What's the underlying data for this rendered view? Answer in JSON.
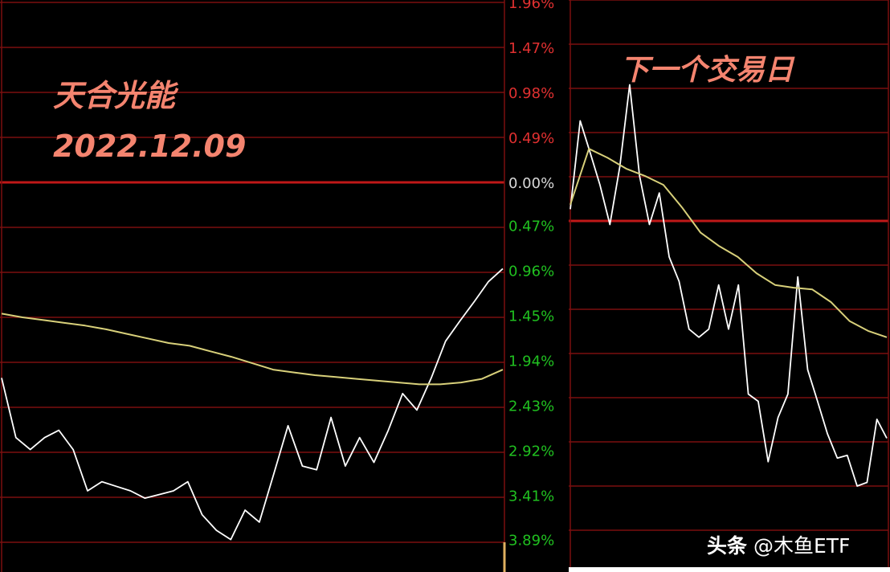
{
  "chart_data": [
    {
      "type": "line",
      "title": "天合光能",
      "subtitle": "2022.12.09",
      "ylabel_ticks": [
        "1.96%",
        "1.47%",
        "0.98%",
        "0.49%",
        "0.00%",
        "0.47%",
        "0.96%",
        "1.45%",
        "1.94%",
        "2.43%",
        "2.92%",
        "3.41%",
        "3.89%"
      ],
      "tick_values": [
        1.96,
        1.47,
        0.98,
        0.49,
        0,
        -0.47,
        -0.96,
        -1.45,
        -1.94,
        -2.43,
        -2.92,
        -3.41,
        -3.89
      ],
      "ylim": [
        -3.89,
        1.96
      ],
      "grid": true,
      "series": [
        {
          "color": "#ffffff",
          "values": [
            -2.13,
            -2.78,
            -2.91,
            -2.78,
            -2.7,
            -2.91,
            -3.36,
            -3.26,
            -3.31,
            -3.36,
            -3.44,
            -3.4,
            -3.36,
            -3.26,
            -3.62,
            -3.79,
            -3.89,
            -3.57,
            -3.7,
            -3.18,
            -2.65,
            -3.09,
            -3.13,
            -2.56,
            -3.09,
            -2.78,
            -3.05,
            -2.7,
            -2.3,
            -2.48,
            -2.13,
            -1.73,
            -1.51,
            -1.3,
            -1.08,
            -0.94
          ]
        },
        {
          "color": "#d8d07a",
          "values": [
            -1.43,
            -1.47,
            -1.5,
            -1.53,
            -1.56,
            -1.6,
            -1.65,
            -1.7,
            -1.75,
            -1.78,
            -1.84,
            -1.9,
            -1.97,
            -2.04,
            -2.07,
            -2.1,
            -2.12,
            -2.14,
            -2.16,
            -2.18,
            -2.2,
            -2.2,
            -2.18,
            -2.14,
            -2.04
          ]
        }
      ]
    },
    {
      "type": "line",
      "title": "下一个交易日",
      "ylim": [
        -3.89,
        1.96
      ],
      "grid": true,
      "series": [
        {
          "color": "#ffffff",
          "values": [
            0.13,
            1.11,
            0.76,
            0.4,
            -0.04,
            0.6,
            1.51,
            0.5,
            -0.04,
            0.31,
            -0.4,
            -0.67,
            -1.2,
            -1.29,
            -1.2,
            -0.71,
            -1.2,
            -0.71,
            -1.92,
            -2.0,
            -2.67,
            -2.18,
            -1.92,
            -0.62,
            -1.65,
            -2.0,
            -2.36,
            -2.63,
            -2.6,
            -2.94,
            -2.9,
            -2.2,
            -2.41
          ]
        },
        {
          "color": "#d8d07a",
          "values": [
            0.18,
            0.8,
            0.7,
            0.58,
            0.5,
            0.4,
            0.15,
            -0.13,
            -0.28,
            -0.4,
            -0.58,
            -0.71,
            -0.74,
            -0.76,
            -0.9,
            -1.11,
            -1.22,
            -1.29
          ]
        }
      ]
    }
  ],
  "watermark": {
    "bold": "头条",
    "rest": " @木鱼ETF"
  },
  "colors": {
    "grid": "#7a0f0f",
    "zero_line": "#c01818",
    "up_label": "#e03030",
    "down_label": "#20c020",
    "zero_label": "#d8d8d8",
    "title": "#f4846f"
  }
}
